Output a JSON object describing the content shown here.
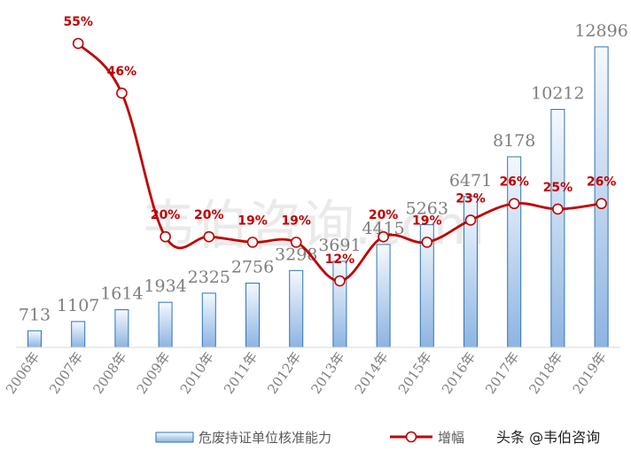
{
  "chart_data": {
    "type": "bar",
    "categories": [
      "2006年",
      "2007年",
      "2008年",
      "2009年",
      "2010年",
      "2011年",
      "2012年",
      "2013年",
      "2014年",
      "2015年",
      "2016年",
      "2017年",
      "2018年",
      "2019年"
    ],
    "series": [
      {
        "name": "危废持证单位核准能力",
        "type": "bar",
        "values": [
          713,
          1107,
          1614,
          1934,
          2325,
          2756,
          3298,
          3691,
          4415,
          5263,
          6471,
          8178,
          10212,
          12896
        ],
        "value_labels": [
          "713",
          "1107",
          "1614",
          "1934",
          "2325",
          "2756",
          "3298",
          "3691",
          "4415",
          "5263",
          "6471",
          "8178",
          "10212",
          "12896"
        ],
        "color": "#9dc3e6"
      },
      {
        "name": "增幅",
        "type": "line",
        "values": [
          null,
          55,
          46,
          20,
          20,
          19,
          19,
          12,
          20,
          19,
          23,
          26,
          25,
          26
        ],
        "value_labels": [
          "",
          "55%",
          "46%",
          "20%",
          "20%",
          "19%",
          "19%",
          "12%",
          "20%",
          "19%",
          "23%",
          "26%",
          "25%",
          "26%"
        ],
        "color": "#c00000"
      }
    ],
    "title": "",
    "xlabel": "",
    "ylabel": "",
    "ylim": [
      0,
      13500
    ],
    "y2lim": [
      0,
      58
    ],
    "grid": false,
    "legend_position": "bottom"
  },
  "watermark": "韦伯咨询.com",
  "source": "头条 @韦伯咨询"
}
